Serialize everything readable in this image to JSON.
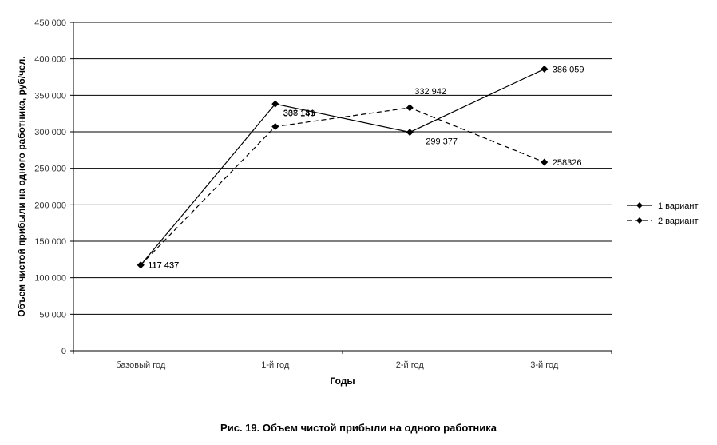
{
  "caption": "Рис. 19. Объем чистой прибыли на одного работника",
  "chart_data": {
    "type": "line",
    "title": "",
    "xlabel": "Годы",
    "ylabel": "Объем чистой прибыли на одного работника, руб/чел.",
    "categories": [
      "базовый год",
      "1-й год",
      "2-й год",
      "3-й год"
    ],
    "ylim": [
      0,
      450000
    ],
    "yticks": [
      0,
      50000,
      100000,
      150000,
      200000,
      250000,
      300000,
      350000,
      400000,
      450000
    ],
    "ytick_labels": [
      "0",
      "50 000",
      "100 000",
      "150 000",
      "200 000",
      "250 000",
      "300 000",
      "350 000",
      "400 000",
      "450 000"
    ],
    "grid": true,
    "legend_position": "right",
    "series": [
      {
        "name": "1 вариант",
        "line_style": "solid",
        "marker": "diamond",
        "color": "#000000",
        "values": [
          117437,
          338181,
          299377,
          386059
        ],
        "labels": [
          "117 437",
          "338 181",
          "299 377",
          "386 059"
        ]
      },
      {
        "name": "2 вариант",
        "line_style": "dashed",
        "marker": "diamond",
        "color": "#000000",
        "values": [
          117437,
          307146,
          332942,
          258326
        ],
        "labels": [
          "117 437",
          "307 146",
          "332 942",
          "258326"
        ]
      }
    ]
  }
}
